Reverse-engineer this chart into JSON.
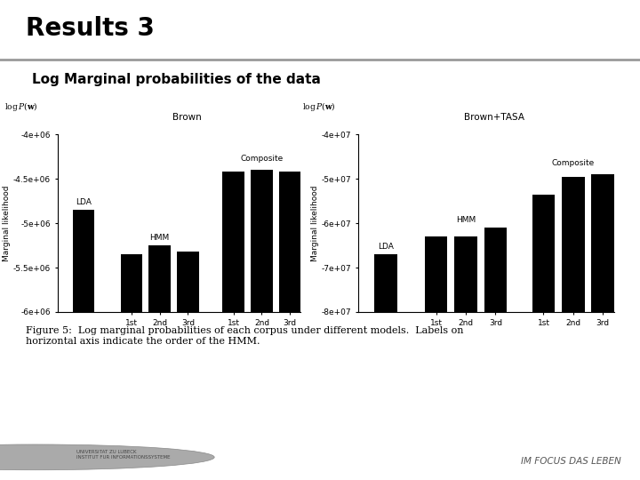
{
  "title": "Results 3",
  "subtitle": "Log Marginal probabilities of the data",
  "figure_caption": "Figure 5:  Log marginal probabilities of each corpus under different models.  Labels on\nhorizontal axis indicate the order of the HMM.",
  "left_plot": {
    "title": "Brown",
    "ylabel": "Marginal likelihood",
    "ylim": [
      -6000000.0,
      -4000000.0
    ],
    "yticks": [
      -6000000.0,
      -5500000.0,
      -5000000.0,
      -4500000.0,
      -4000000.0
    ],
    "ytick_labels": [
      "-6e+06",
      "-5.5e+06",
      "-5e+06",
      "-4.5e+06",
      "-4e+06"
    ],
    "lda_val": -4850000.0,
    "hmm_vals": [
      -5350000.0,
      -5250000.0,
      -5320000.0
    ],
    "comp_vals": [
      -4420000.0,
      -4400000.0,
      -4420000.0
    ]
  },
  "right_plot": {
    "title": "Brown+TASA",
    "ylabel": "Marginal likelihood",
    "ylim": [
      -80000000.0,
      -40000000.0
    ],
    "yticks": [
      -80000000.0,
      -70000000.0,
      -60000000.0,
      -50000000.0,
      -40000000.0
    ],
    "ytick_labels": [
      "-8e+07",
      "-7e+07",
      "-6e+07",
      "-5e+07",
      "-4e+07"
    ],
    "lda_val": -67000000.0,
    "hmm_vals": [
      -63000000.0,
      -63000000.0,
      -61000000.0
    ],
    "comp_vals": [
      -53500000.0,
      -49500000.0,
      -49000000.0
    ]
  },
  "bar_color": "#000000",
  "bg_color": "#ffffff",
  "title_color": "#000000",
  "title_fontsize": 20,
  "subtitle_fontsize": 11,
  "header_line_color": "#999999",
  "footer_color": "#cccccc",
  "footer_text_color": "#555555"
}
